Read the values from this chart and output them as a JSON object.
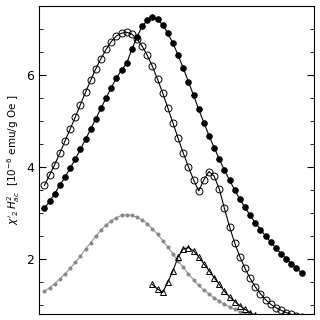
{
  "ylim": [
    0.8,
    7.5
  ],
  "yticks": [
    2,
    4,
    6
  ],
  "background_color": "#ffffff",
  "series": [
    {
      "name": "filled_circles",
      "marker": "o",
      "filled": true,
      "color": "#000000",
      "markersize": 4,
      "linewidth": 0.8,
      "x": [
        0.0,
        0.02,
        0.04,
        0.06,
        0.08,
        0.1,
        0.12,
        0.14,
        0.16,
        0.18,
        0.2,
        0.22,
        0.24,
        0.26,
        0.28,
        0.3,
        0.32,
        0.34,
        0.36,
        0.38,
        0.4,
        0.42,
        0.44,
        0.46,
        0.48,
        0.5,
        0.52,
        0.54,
        0.56,
        0.58,
        0.6,
        0.62,
        0.64,
        0.66,
        0.68,
        0.7,
        0.72,
        0.74,
        0.76,
        0.78,
        0.8,
        0.82,
        0.84,
        0.86,
        0.88,
        0.9,
        0.92,
        0.94,
        0.96,
        0.98,
        1.0
      ],
      "y": [
        3.1,
        3.25,
        3.42,
        3.6,
        3.78,
        3.97,
        4.17,
        4.38,
        4.6,
        4.82,
        5.05,
        5.27,
        5.5,
        5.72,
        5.93,
        6.1,
        6.25,
        6.55,
        6.82,
        7.05,
        7.18,
        7.25,
        7.2,
        7.08,
        6.9,
        6.68,
        6.42,
        6.14,
        5.85,
        5.55,
        5.25,
        4.96,
        4.68,
        4.42,
        4.17,
        3.93,
        3.71,
        3.5,
        3.3,
        3.12,
        2.95,
        2.79,
        2.64,
        2.5,
        2.37,
        2.24,
        2.12,
        2.01,
        1.9,
        1.8,
        1.7
      ]
    },
    {
      "name": "open_circles",
      "marker": "o",
      "filled": false,
      "color": "#000000",
      "markersize": 5,
      "linewidth": 0.8,
      "x": [
        0.0,
        0.02,
        0.04,
        0.06,
        0.08,
        0.1,
        0.12,
        0.14,
        0.16,
        0.18,
        0.2,
        0.22,
        0.24,
        0.26,
        0.28,
        0.3,
        0.32,
        0.34,
        0.36,
        0.38,
        0.4,
        0.42,
        0.44,
        0.46,
        0.48,
        0.5,
        0.52,
        0.54,
        0.56,
        0.58,
        0.6,
        0.62,
        0.64,
        0.66,
        0.68,
        0.7,
        0.72,
        0.74,
        0.76,
        0.78,
        0.8,
        0.82,
        0.84,
        0.86,
        0.88,
        0.9,
        0.92,
        0.94,
        0.96,
        0.98,
        1.0
      ],
      "y": [
        3.6,
        3.82,
        4.05,
        4.3,
        4.56,
        4.82,
        5.08,
        5.35,
        5.62,
        5.88,
        6.13,
        6.35,
        6.55,
        6.72,
        6.84,
        6.9,
        6.92,
        6.88,
        6.78,
        6.62,
        6.42,
        6.18,
        5.9,
        5.6,
        5.28,
        4.95,
        4.62,
        4.3,
        4.0,
        3.72,
        3.48,
        3.72,
        3.9,
        3.8,
        3.52,
        3.1,
        2.7,
        2.35,
        2.05,
        1.8,
        1.58,
        1.4,
        1.25,
        1.12,
        1.02,
        0.95,
        0.89,
        0.84,
        0.8,
        0.77,
        0.75
      ]
    },
    {
      "name": "small_dots",
      "marker": "o",
      "filled": true,
      "color": "#888888",
      "markersize": 2.2,
      "linewidth": 0.7,
      "x": [
        0.0,
        0.02,
        0.04,
        0.06,
        0.08,
        0.1,
        0.12,
        0.14,
        0.16,
        0.18,
        0.2,
        0.22,
        0.24,
        0.26,
        0.28,
        0.3,
        0.32,
        0.34,
        0.36,
        0.38,
        0.4,
        0.42,
        0.44,
        0.46,
        0.48,
        0.5,
        0.52,
        0.54,
        0.56,
        0.58,
        0.6,
        0.62,
        0.64,
        0.66,
        0.68,
        0.7,
        0.72,
        0.74,
        0.76,
        0.78,
        0.8,
        0.82,
        0.84,
        0.86,
        0.88,
        0.9,
        0.92,
        0.94,
        0.96,
        0.98,
        1.0
      ],
      "y": [
        1.3,
        1.38,
        1.47,
        1.57,
        1.68,
        1.8,
        1.93,
        2.07,
        2.22,
        2.36,
        2.5,
        2.63,
        2.74,
        2.83,
        2.9,
        2.95,
        2.96,
        2.95,
        2.91,
        2.85,
        2.77,
        2.66,
        2.54,
        2.4,
        2.26,
        2.11,
        1.96,
        1.82,
        1.68,
        1.55,
        1.43,
        1.33,
        1.24,
        1.16,
        1.09,
        1.02,
        0.96,
        0.91,
        0.86,
        0.82,
        0.78,
        0.75,
        0.72,
        0.69,
        0.67,
        0.65,
        0.63,
        0.62,
        0.61,
        0.6,
        0.59
      ]
    },
    {
      "name": "open_triangles",
      "marker": "^",
      "filled": false,
      "color": "#000000",
      "markersize": 4,
      "linewidth": 0.8,
      "x": [
        0.42,
        0.44,
        0.46,
        0.48,
        0.5,
        0.52,
        0.54,
        0.56,
        0.58,
        0.6,
        0.62,
        0.64,
        0.66,
        0.68,
        0.7,
        0.72,
        0.74,
        0.76,
        0.78,
        0.8,
        0.82,
        0.84,
        0.86,
        0.88,
        0.9,
        0.92,
        0.94,
        0.96,
        0.98,
        1.0
      ],
      "y": [
        1.45,
        1.35,
        1.28,
        1.5,
        1.75,
        2.05,
        2.22,
        2.25,
        2.18,
        2.05,
        1.9,
        1.75,
        1.6,
        1.45,
        1.3,
        1.18,
        1.08,
        0.99,
        0.91,
        0.84,
        0.78,
        0.73,
        0.68,
        0.64,
        0.61,
        0.58,
        0.56,
        0.54,
        0.52,
        0.5
      ]
    }
  ]
}
